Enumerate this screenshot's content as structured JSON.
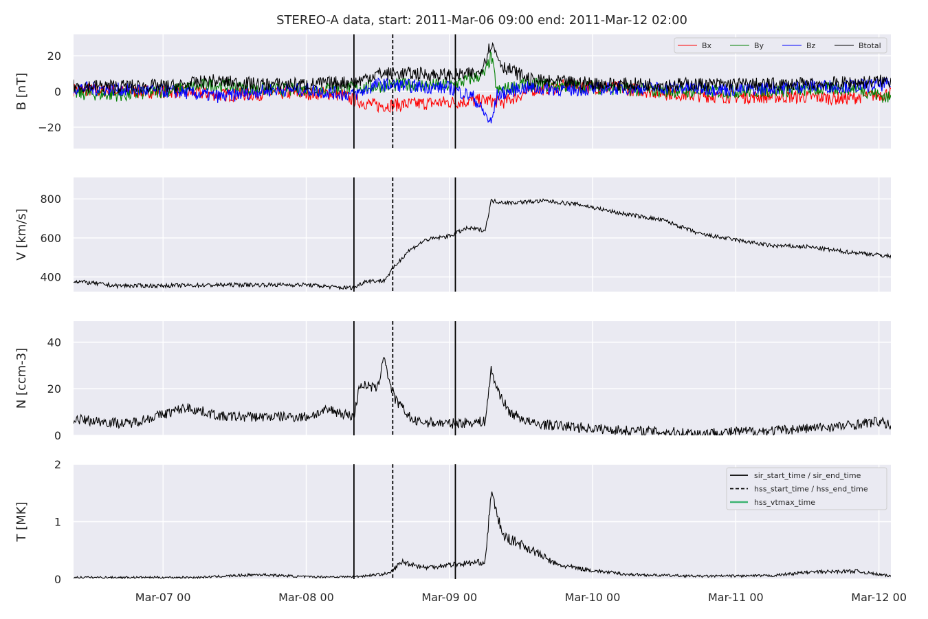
{
  "chart_data": {
    "type": "line",
    "title": "STEREO-A data, start: 2011-Mar-06 09:00  end: 2011-Mar-12 02:00",
    "x_range": [
      "2011-03-06T09:00",
      "2011-03-12T02:00"
    ],
    "x_ticks": [
      {
        "t": "2011-03-07T00:00",
        "label": "Mar-07 00"
      },
      {
        "t": "2011-03-08T00:00",
        "label": "Mar-08 00"
      },
      {
        "t": "2011-03-09T00:00",
        "label": "Mar-09 00"
      },
      {
        "t": "2011-03-10T00:00",
        "label": "Mar-10 00"
      },
      {
        "t": "2011-03-11T00:00",
        "label": "Mar-11 00"
      },
      {
        "t": "2011-03-12T00:00",
        "label": "Mar-12 00"
      }
    ],
    "grid": true,
    "event_lines": [
      {
        "t": "2011-03-08T08:00",
        "style": "solid"
      },
      {
        "t": "2011-03-08T14:30",
        "style": "dashed"
      },
      {
        "t": "2011-03-09T01:00",
        "style": "solid"
      }
    ],
    "panels": [
      {
        "id": "B",
        "ylabel": "B [nT]",
        "ylim": [
          -32,
          32
        ],
        "yticks": [
          {
            "v": -20,
            "label": "−20"
          },
          {
            "v": 0,
            "label": "0"
          },
          {
            "v": 20,
            "label": "20"
          }
        ],
        "legend": {
          "position": "top-right",
          "columns": 4
        },
        "series": [
          {
            "name": "Bx",
            "color": "#ff0000",
            "points": [
              [
                "2011-03-06T09:00",
                1
              ],
              [
                "2011-03-06T18:00",
                0
              ],
              [
                "2011-03-07T02:00",
                0
              ],
              [
                "2011-03-07T10:00",
                -2
              ],
              [
                "2011-03-07T20:00",
                -1
              ],
              [
                "2011-03-08T04:00",
                -1
              ],
              [
                "2011-03-08T06:00",
                -2
              ],
              [
                "2011-03-08T08:00",
                -5
              ],
              [
                "2011-03-08T12:00",
                -8
              ],
              [
                "2011-03-08T18:00",
                -7
              ],
              [
                "2011-03-09T00:00",
                -6
              ],
              [
                "2011-03-09T06:00",
                -5
              ],
              [
                "2011-03-09T09:00",
                -6
              ],
              [
                "2011-03-09T14:00",
                1
              ],
              [
                "2011-03-09T20:00",
                3
              ],
              [
                "2011-03-10T04:00",
                2
              ],
              [
                "2011-03-10T16:00",
                -2
              ],
              [
                "2011-03-11T00:00",
                -3
              ],
              [
                "2011-03-11T12:00",
                -3
              ],
              [
                "2011-03-11T18:00",
                -4
              ],
              [
                "2011-03-12T02:00",
                -1
              ]
            ]
          },
          {
            "name": "By",
            "color": "#008000",
            "points": [
              [
                "2011-03-06T09:00",
                -1
              ],
              [
                "2011-03-06T18:00",
                -2
              ],
              [
                "2011-03-07T02:00",
                1
              ],
              [
                "2011-03-07T08:00",
                4
              ],
              [
                "2011-03-07T16:00",
                1
              ],
              [
                "2011-03-08T00:00",
                1
              ],
              [
                "2011-03-08T08:00",
                2
              ],
              [
                "2011-03-08T12:00",
                3
              ],
              [
                "2011-03-08T18:00",
                4
              ],
              [
                "2011-03-09T00:00",
                3
              ],
              [
                "2011-03-09T06:00",
                10
              ],
              [
                "2011-03-09T07:00",
                20
              ],
              [
                "2011-03-09T08:00",
                0
              ],
              [
                "2011-03-09T12:00",
                4
              ],
              [
                "2011-03-09T20:00",
                3
              ],
              [
                "2011-03-10T06:00",
                1
              ],
              [
                "2011-03-10T16:00",
                0
              ],
              [
                "2011-03-11T00:00",
                0
              ],
              [
                "2011-03-11T12:00",
                1
              ],
              [
                "2011-03-11T20:00",
                2
              ],
              [
                "2011-03-12T02:00",
                -4
              ]
            ]
          },
          {
            "name": "Bz",
            "color": "#0000ff",
            "points": [
              [
                "2011-03-06T09:00",
                2
              ],
              [
                "2011-03-06T18:00",
                1
              ],
              [
                "2011-03-07T02:00",
                0
              ],
              [
                "2011-03-07T10:00",
                -3
              ],
              [
                "2011-03-07T18:00",
                1
              ],
              [
                "2011-03-08T00:00",
                1
              ],
              [
                "2011-03-08T08:00",
                -2
              ],
              [
                "2011-03-08T12:00",
                4
              ],
              [
                "2011-03-08T18:00",
                3
              ],
              [
                "2011-03-09T00:00",
                2
              ],
              [
                "2011-03-09T04:00",
                -3
              ],
              [
                "2011-03-09T07:00",
                -18
              ],
              [
                "2011-03-09T08:00",
                -2
              ],
              [
                "2011-03-09T12:00",
                2
              ],
              [
                "2011-03-09T20:00",
                1
              ],
              [
                "2011-03-10T06:00",
                2
              ],
              [
                "2011-03-10T16:00",
                2
              ],
              [
                "2011-03-11T00:00",
                1
              ],
              [
                "2011-03-11T12:00",
                3
              ],
              [
                "2011-03-11T20:00",
                3
              ],
              [
                "2011-03-12T02:00",
                4
              ]
            ]
          },
          {
            "name": "Btotal",
            "color": "#000000",
            "points": [
              [
                "2011-03-06T09:00",
                3
              ],
              [
                "2011-03-06T18:00",
                3
              ],
              [
                "2011-03-07T02:00",
                3
              ],
              [
                "2011-03-07T08:00",
                6
              ],
              [
                "2011-03-07T16:00",
                4
              ],
              [
                "2011-03-08T00:00",
                4
              ],
              [
                "2011-03-08T06:00",
                5
              ],
              [
                "2011-03-08T08:00",
                5
              ],
              [
                "2011-03-08T12:00",
                10
              ],
              [
                "2011-03-08T18:00",
                10
              ],
              [
                "2011-03-09T00:00",
                9
              ],
              [
                "2011-03-09T05:00",
                10
              ],
              [
                "2011-03-09T07:00",
                27
              ],
              [
                "2011-03-09T09:00",
                14
              ],
              [
                "2011-03-09T14:00",
                6
              ],
              [
                "2011-03-09T20:00",
                5
              ],
              [
                "2011-03-10T06:00",
                4
              ],
              [
                "2011-03-10T16:00",
                4
              ],
              [
                "2011-03-11T00:00",
                4
              ],
              [
                "2011-03-11T12:00",
                4
              ],
              [
                "2011-03-11T20:00",
                5
              ],
              [
                "2011-03-12T02:00",
                6
              ]
            ]
          }
        ]
      },
      {
        "id": "V",
        "ylabel": "V [km/s]",
        "ylim": [
          325,
          910
        ],
        "yticks": [
          {
            "v": 400,
            "label": "400"
          },
          {
            "v": 600,
            "label": "600"
          },
          {
            "v": 800,
            "label": "800"
          }
        ],
        "series": [
          {
            "name": "",
            "color": "#000000",
            "points": [
              [
                "2011-03-06T09:00",
                380
              ],
              [
                "2011-03-06T16:00",
                355
              ],
              [
                "2011-03-07T00:00",
                355
              ],
              [
                "2011-03-07T12:00",
                360
              ],
              [
                "2011-03-08T00:00",
                360
              ],
              [
                "2011-03-08T06:00",
                345
              ],
              [
                "2011-03-08T08:00",
                345
              ],
              [
                "2011-03-08T10:00",
                380
              ],
              [
                "2011-03-08T13:00",
                380
              ],
              [
                "2011-03-08T15:00",
                460
              ],
              [
                "2011-03-08T17:00",
                530
              ],
              [
                "2011-03-08T20:00",
                590
              ],
              [
                "2011-03-09T00:00",
                610
              ],
              [
                "2011-03-09T03:00",
                650
              ],
              [
                "2011-03-09T06:00",
                640
              ],
              [
                "2011-03-09T07:00",
                790
              ],
              [
                "2011-03-09T10:00",
                780
              ],
              [
                "2011-03-09T16:00",
                790
              ],
              [
                "2011-03-09T22:00",
                770
              ],
              [
                "2011-03-10T04:00",
                730
              ],
              [
                "2011-03-10T12:00",
                690
              ],
              [
                "2011-03-10T18:00",
                620
              ],
              [
                "2011-03-11T00:00",
                590
              ],
              [
                "2011-03-11T06:00",
                560
              ],
              [
                "2011-03-11T12:00",
                555
              ],
              [
                "2011-03-11T18:00",
                530
              ],
              [
                "2011-03-11T22:00",
                520
              ],
              [
                "2011-03-12T02:00",
                505
              ]
            ]
          }
        ]
      },
      {
        "id": "N",
        "ylabel": "N [ccm-3]",
        "ylim": [
          0,
          49
        ],
        "yticks": [
          {
            "v": 0,
            "label": "0"
          },
          {
            "v": 20,
            "label": "20"
          },
          {
            "v": 40,
            "label": "40"
          }
        ],
        "series": [
          {
            "name": "",
            "color": "#000000",
            "points": [
              [
                "2011-03-06T09:00",
                7
              ],
              [
                "2011-03-06T18:00",
                5
              ],
              [
                "2011-03-07T00:00",
                9
              ],
              [
                "2011-03-07T04:00",
                12
              ],
              [
                "2011-03-07T10:00",
                8
              ],
              [
                "2011-03-07T18:00",
                8
              ],
              [
                "2011-03-08T00:00",
                8
              ],
              [
                "2011-03-08T04:00",
                11
              ],
              [
                "2011-03-08T08:00",
                8
              ],
              [
                "2011-03-08T09:00",
                22
              ],
              [
                "2011-03-08T12:00",
                20
              ],
              [
                "2011-03-08T13:00",
                35
              ],
              [
                "2011-03-08T14:00",
                22
              ],
              [
                "2011-03-08T15:00",
                15
              ],
              [
                "2011-03-08T18:00",
                6
              ],
              [
                "2011-03-09T00:00",
                5
              ],
              [
                "2011-03-09T06:00",
                6
              ],
              [
                "2011-03-09T07:00",
                28
              ],
              [
                "2011-03-09T08:00",
                20
              ],
              [
                "2011-03-09T10:00",
                10
              ],
              [
                "2011-03-09T14:00",
                5
              ],
              [
                "2011-03-10T00:00",
                3
              ],
              [
                "2011-03-10T06:00",
                2
              ],
              [
                "2011-03-10T18:00",
                1
              ],
              [
                "2011-03-11T06:00",
                2
              ],
              [
                "2011-03-11T18:00",
                4
              ],
              [
                "2011-03-12T00:00",
                6
              ],
              [
                "2011-03-12T02:00",
                4
              ]
            ]
          }
        ]
      },
      {
        "id": "T",
        "ylabel": "T [MK]",
        "ylim": [
          0,
          2
        ],
        "yticks": [
          {
            "v": 0,
            "label": "0"
          },
          {
            "v": 1,
            "label": "1"
          },
          {
            "v": 2,
            "label": "2"
          }
        ],
        "legend": {
          "position": "top-right",
          "columns": 1
        },
        "series": [
          {
            "name": "",
            "color": "#000000",
            "points": [
              [
                "2011-03-06T09:00",
                0.03
              ],
              [
                "2011-03-07T06:00",
                0.03
              ],
              [
                "2011-03-07T16:00",
                0.08
              ],
              [
                "2011-03-08T00:00",
                0.04
              ],
              [
                "2011-03-08T08:00",
                0.04
              ],
              [
                "2011-03-08T14:00",
                0.1
              ],
              [
                "2011-03-08T16:00",
                0.3
              ],
              [
                "2011-03-08T20:00",
                0.2
              ],
              [
                "2011-03-09T00:00",
                0.25
              ],
              [
                "2011-03-09T06:00",
                0.3
              ],
              [
                "2011-03-09T07:00",
                1.5
              ],
              [
                "2011-03-09T09:00",
                0.75
              ],
              [
                "2011-03-09T14:00",
                0.5
              ],
              [
                "2011-03-09T18:00",
                0.25
              ],
              [
                "2011-03-10T00:00",
                0.15
              ],
              [
                "2011-03-10T06:00",
                0.08
              ],
              [
                "2011-03-10T18:00",
                0.05
              ],
              [
                "2011-03-11T06:00",
                0.06
              ],
              [
                "2011-03-11T12:00",
                0.12
              ],
              [
                "2011-03-11T20:00",
                0.14
              ],
              [
                "2011-03-12T02:00",
                0.05
              ]
            ]
          }
        ]
      }
    ],
    "event_legend": [
      {
        "label": "sir_start_time / sir_end_time",
        "color": "#000000",
        "style": "solid"
      },
      {
        "label": "hss_start_time / hss_end_time",
        "color": "#000000",
        "style": "dashed"
      },
      {
        "label": "hss_vtmax_time",
        "color": "#3cb371",
        "style": "solid"
      }
    ],
    "colors": {
      "plot_bg": "#eaeaf2",
      "grid": "#ffffff",
      "text": "#262626"
    }
  }
}
